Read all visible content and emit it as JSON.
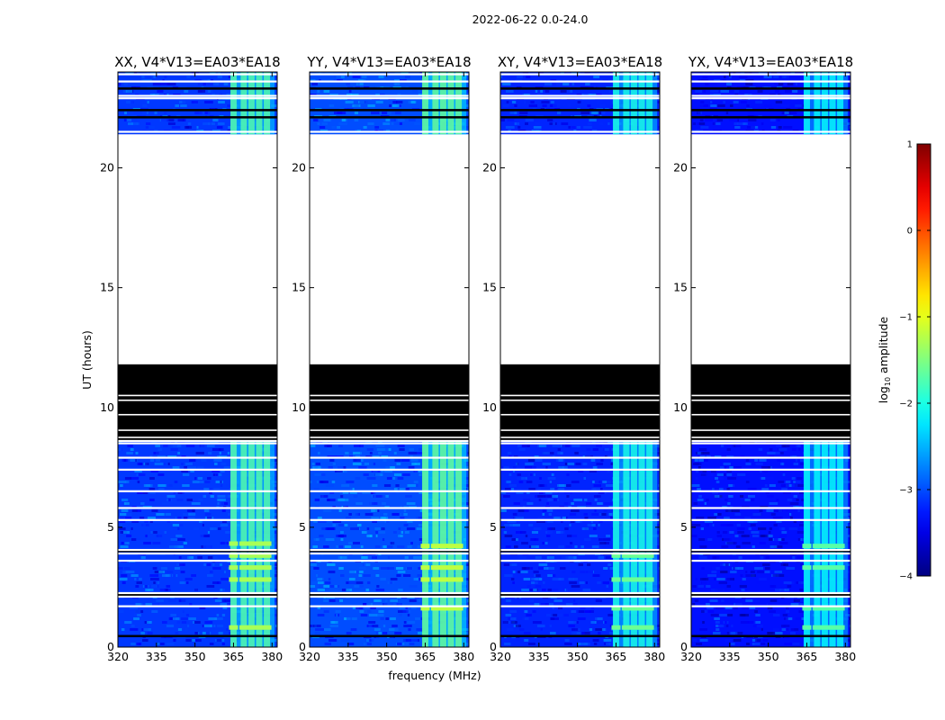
{
  "figure_title": "2022-06-22 0.0-24.0",
  "chart_data": {
    "type": "heatmap",
    "suptitle": "2022-06-22 0.0-24.0",
    "xlabel": "frequency (MHz)",
    "ylabel": "UT (hours)",
    "xlim": [
      320,
      382
    ],
    "ylim": [
      0,
      24
    ],
    "x_ticks": [
      320,
      335,
      350,
      365,
      380
    ],
    "y_ticks": [
      0,
      5,
      10,
      15,
      20
    ],
    "colorbar": {
      "label": "log10 amplitude",
      "label_main": "log",
      "label_sub": "10",
      "label_tail": " amplitude",
      "range": [
        -4,
        1
      ],
      "ticks": [
        1,
        0,
        -1,
        -2,
        -3,
        -4
      ],
      "tick_labels": [
        "1",
        "0",
        "−1",
        "−2",
        "−3",
        "−4"
      ],
      "colormap": "jet"
    },
    "panels": [
      {
        "title": "XX, V4*V13=EA03*EA18",
        "signal_band_mhz": [
          364,
          381
        ],
        "strong_channels_mhz": [
          365,
          369,
          372,
          375,
          378
        ],
        "bright_rows_ut": [
          0.8,
          2.8,
          3.3,
          3.8,
          4.3
        ],
        "bright_level": -1.3,
        "noise_level": -3.1
      },
      {
        "title": "YY, V4*V13=EA03*EA18",
        "signal_band_mhz": [
          364,
          381
        ],
        "strong_channels_mhz": [
          365,
          369,
          372,
          375,
          378
        ],
        "bright_rows_ut": [
          1.6,
          2.8,
          3.3,
          4.2
        ],
        "bright_level": -1.2,
        "noise_level": -3.0
      },
      {
        "title": "XY, V4*V13=EA03*EA18",
        "signal_band_mhz": [
          364,
          381
        ],
        "strong_channels_mhz": [
          365,
          369,
          372,
          375,
          378
        ],
        "bright_rows_ut": [
          0.8,
          1.6,
          2.8,
          3.8
        ],
        "bright_level": -1.6,
        "noise_level": -3.2
      },
      {
        "title": "YX, V4*V13=EA03*EA18",
        "signal_band_mhz": [
          364,
          381
        ],
        "strong_channels_mhz": [
          365,
          369,
          372,
          375,
          378
        ],
        "bright_rows_ut": [
          0.8,
          1.6,
          3.3,
          4.2
        ],
        "bright_level": -1.7,
        "noise_level": -3.3
      }
    ],
    "data_segments_ut": [
      [
        0,
        8.6
      ],
      [
        21.4,
        24
      ]
    ],
    "flagged_segments_ut": [
      [
        8.6,
        11.8
      ]
    ],
    "empty_segments_ut": [
      [
        11.8,
        21.4
      ]
    ],
    "flagged_rows_ut": [
      0.45,
      2.15,
      2.2,
      4.0,
      8.9,
      9.4,
      10.1,
      22.1,
      22.4,
      23.3
    ],
    "blank_rows_ut": [
      1.7,
      2.1,
      2.25,
      3.6,
      3.9,
      4.05,
      5.3,
      5.8,
      6.5,
      7.4,
      7.9,
      8.5,
      8.6,
      21.5,
      22.9,
      23.0,
      23.6,
      23.9
    ]
  }
}
